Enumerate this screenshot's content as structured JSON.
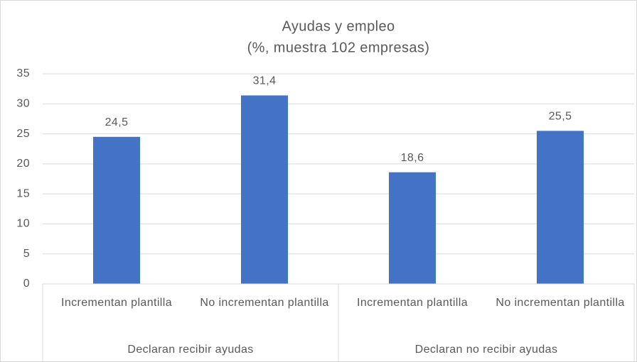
{
  "chart_data": {
    "type": "bar",
    "title": "Ayudas y empleo",
    "subtitle": "(%, muestra  102 empresas)",
    "categories": [
      "Incrementan plantilla",
      "No incrementan plantilla",
      "Incrementan plantilla",
      "No incrementan plantilla"
    ],
    "groups": [
      {
        "label": "Declaran recibir ayudas",
        "size": 2
      },
      {
        "label": "Declaran no recibir ayudas",
        "size": 2
      }
    ],
    "values": [
      24.5,
      31.4,
      18.6,
      25.5
    ],
    "value_labels": [
      "24,5",
      "31,4",
      "18,6",
      "25,5"
    ],
    "color": "#4472c4",
    "ylim": [
      0,
      35
    ],
    "yticks": [
      0,
      5,
      10,
      15,
      20,
      25,
      30,
      35
    ],
    "grid": true
  }
}
